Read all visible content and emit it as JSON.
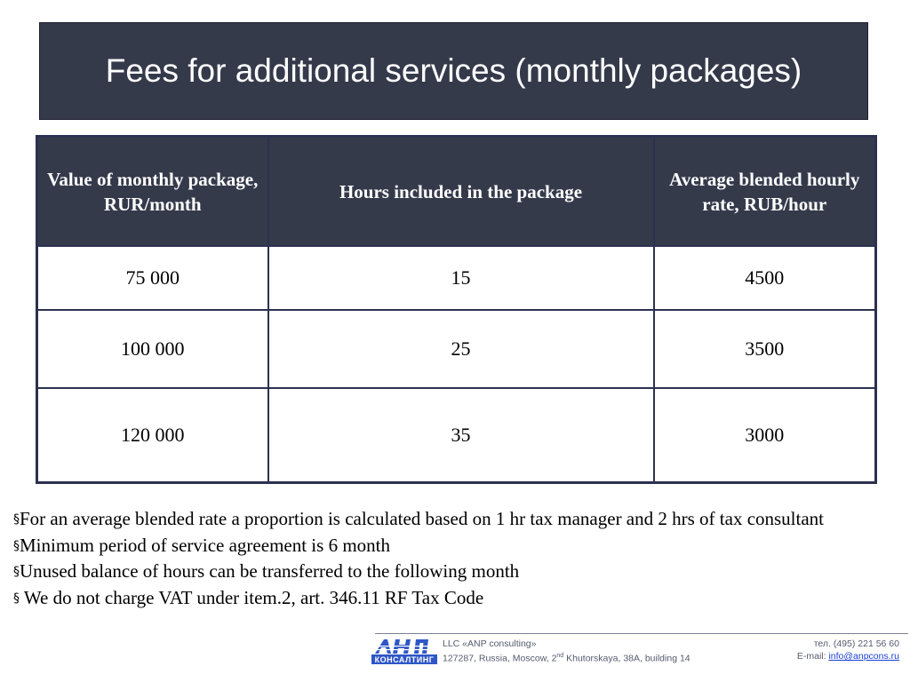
{
  "title": "Fees for additional services (monthly packages)",
  "table": {
    "headers": [
      "Value of monthly package, RUR/month",
      "Hours included in the package",
      "Average blended hourly rate, RUB/hour"
    ],
    "rows": [
      [
        "75 000",
        "15",
        "4500"
      ],
      [
        "100 000",
        "25",
        "3500"
      ],
      [
        "120 000",
        "35",
        "3000"
      ]
    ]
  },
  "notes": {
    "bullet_symbol": "§",
    "items": [
      "For an average blended rate a proportion is calculated based on 1 hr tax manager and 2 hrs of tax consultant",
      "Minimum period of service agreement is 6 month",
      "Unused balance of hours can be transferred to the following month",
      " We do not charge VAT under item.2, art. 346.11 RF Tax Code"
    ]
  },
  "footer": {
    "logo_text": "КОНСАЛТИНГ",
    "company": "LLC  «ANP consulting»",
    "address_prefix": "127287, Russia, Moscow, 2",
    "address_sup": "nd",
    "address_suffix": " Khutorskaya, 38A, building 14",
    "phone": "тел. (495) 221 56 60",
    "email_label": "E-mail: ",
    "email": "info@anpcons.ru"
  },
  "colors": {
    "header_bg": "#353a4b",
    "border": "#2b3150",
    "logo_blue": "#2e56c6",
    "link": "#1a3fd8"
  }
}
